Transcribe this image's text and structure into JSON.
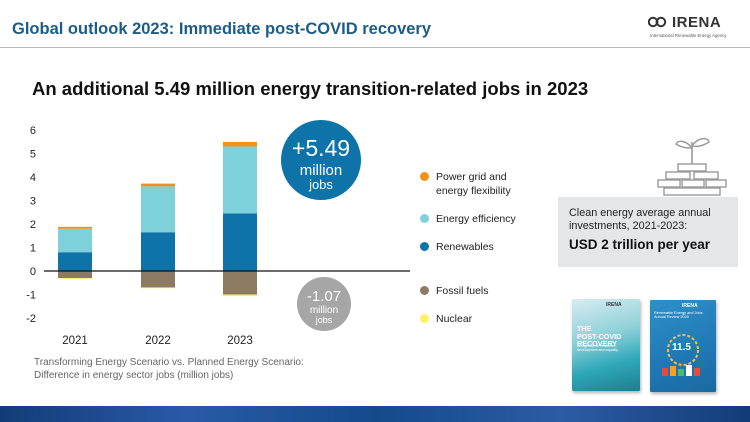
{
  "header": {
    "title": "Global outlook 2023: Immediate post-COVID recovery",
    "logo_text": "IRENA",
    "logo_subtext": "International Renewable Energy Agency"
  },
  "main_title": "An additional 5.49 million energy transition-related jobs in 2023",
  "chart_data": {
    "type": "bar",
    "stacked": true,
    "categories": [
      "2021",
      "2022",
      "2023"
    ],
    "series": [
      {
        "name": "Renewables",
        "color": "#0d73a9",
        "values": [
          0.8,
          1.65,
          2.45
        ]
      },
      {
        "name": "Energy efficiency",
        "color": "#7ed0da",
        "values": [
          1.0,
          1.95,
          2.85
        ]
      },
      {
        "name": "Power grid and energy flexibility",
        "color": "#f39016",
        "values": [
          0.08,
          0.12,
          0.19
        ]
      },
      {
        "name": "Fossil fuels",
        "color": "#8c7b62",
        "values": [
          -0.3,
          -0.7,
          -1.0
        ]
      },
      {
        "name": "Nuclear",
        "color": "#fff067",
        "values": [
          -0.02,
          -0.03,
          -0.07
        ]
      }
    ],
    "ylim": [
      -2,
      6
    ],
    "yticks": [
      6,
      5,
      4,
      3,
      2,
      1,
      0,
      -1,
      -2
    ],
    "xlabel": "",
    "ylabel": "",
    "legend_placement": "right",
    "grid": false,
    "annotations": [
      {
        "text_line1": "+5.49",
        "text_line2": "million",
        "text_line3": "jobs",
        "color": "#0d73a9"
      },
      {
        "text_line1": "-1.07",
        "text_line2": "million",
        "text_line3": "jobs",
        "color": "#a6a6a6"
      }
    ],
    "source_note": [
      "Transforming Energy Scenario vs. Planned Energy Scenario:",
      "Difference in energy sector jobs (million jobs)"
    ]
  },
  "legend": {
    "items": [
      {
        "label_lines": [
          "Power grid and",
          "energy flexibility"
        ],
        "color": "#f39016"
      },
      {
        "label_lines": [
          "Energy efficiency"
        ],
        "color": "#7ed0da"
      },
      {
        "label_lines": [
          "Renewables"
        ],
        "color": "#0d73a9"
      },
      {
        "label_lines": [
          "Fossil fuels"
        ],
        "color": "#8c7b62"
      },
      {
        "label_lines": [
          "Nuclear"
        ],
        "color": "#fff067"
      }
    ]
  },
  "investment_box": {
    "text_lines": [
      "Clean energy average annual",
      "investments, 2021-2023:"
    ],
    "value": "USD 2 trillion per year"
  },
  "covers": {
    "cover1": {
      "logo": "IRENA",
      "title_lines": [
        "THE",
        "POST-COVID",
        "RECOVERY"
      ],
      "subtitle": "An agenda for resilience, development and equality"
    },
    "cover2": {
      "logo": "IRENA",
      "title": "Renewable Energy and Jobs Annual Review 2020",
      "number": "11.5"
    }
  }
}
